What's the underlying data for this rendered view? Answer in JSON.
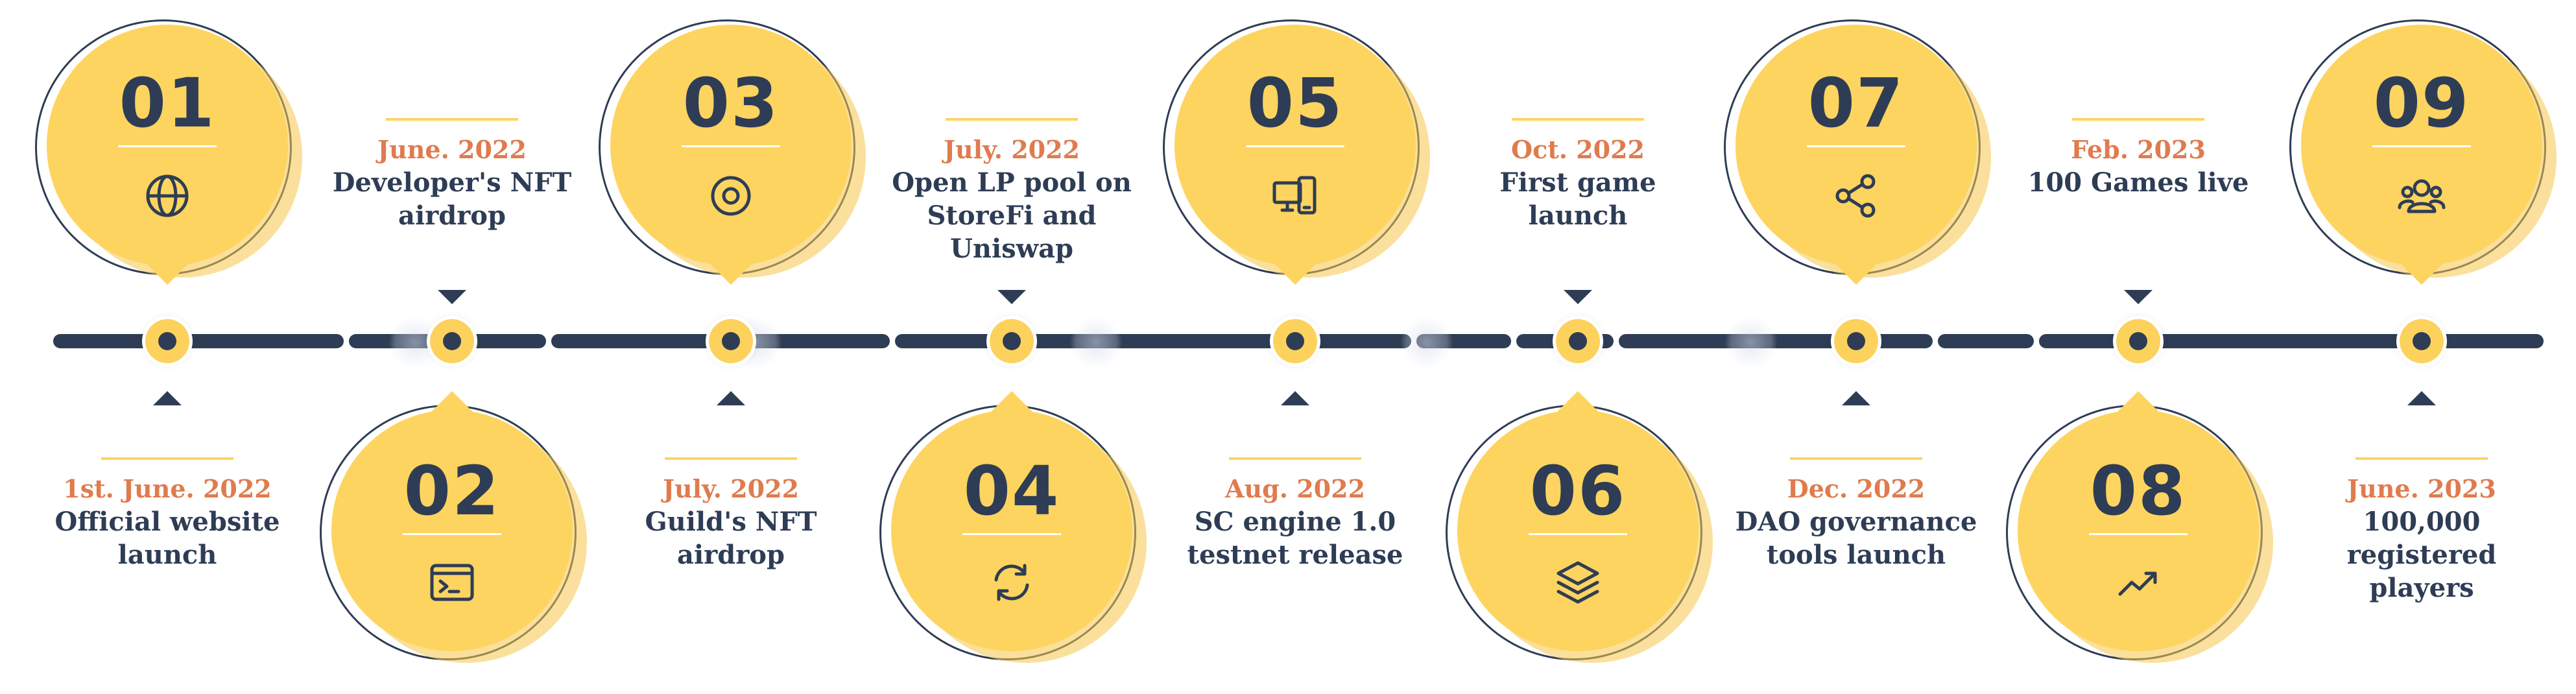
{
  "colors": {
    "navy": "#2e3d55",
    "yellow": "#fdd45f",
    "orange": "#e07b4e",
    "white": "#ffffff"
  },
  "milestones": [
    {
      "number": "01",
      "icon": "globe-icon",
      "date": "1st. June. 2022",
      "desc": "Official website launch"
    },
    {
      "number": "02",
      "icon": "terminal-icon",
      "date": "June. 2022",
      "desc": "Developer's NFT airdrop"
    },
    {
      "number": "03",
      "icon": "target-icon",
      "date": "July. 2022",
      "desc": "Guild's NFT airdrop"
    },
    {
      "number": "04",
      "icon": "refresh-icon",
      "date": "July. 2022",
      "desc": "Open LP pool on StoreFi and Uniswap"
    },
    {
      "number": "05",
      "icon": "devices-icon",
      "date": "Aug. 2022",
      "desc": "SC engine 1.0 testnet release"
    },
    {
      "number": "06",
      "icon": "layers-icon",
      "date": "Oct. 2022",
      "desc": "First game launch"
    },
    {
      "number": "07",
      "icon": "share-icon",
      "date": "Dec. 2022",
      "desc": "DAO governance tools launch"
    },
    {
      "number": "08",
      "icon": "trending-up-icon",
      "date": "Feb. 2023",
      "desc": "100 Games live"
    },
    {
      "number": "09",
      "icon": "users-icon",
      "date": "June. 2023",
      "desc": "100,000 registered players"
    }
  ]
}
